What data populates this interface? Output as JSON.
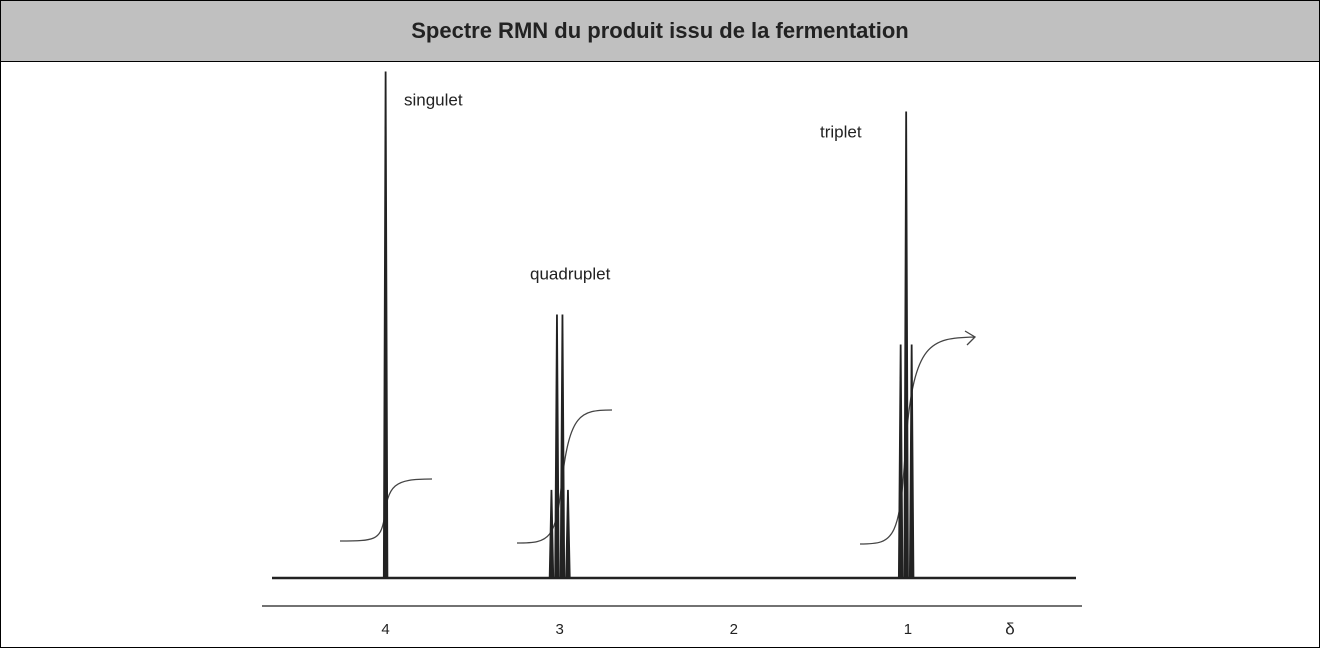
{
  "chart_data": {
    "type": "nmr",
    "title": "Spectre RMN du produit issu de la fermentation",
    "xlabel": "δ",
    "xlim": [
      4.71,
      0
    ],
    "xticks": [
      4,
      3,
      2,
      1
    ],
    "peaks": [
      {
        "label": "singulet",
        "delta": 4.0,
        "lines": 1
      },
      {
        "label": "quadruplet",
        "delta": 3.0,
        "lines": 4
      },
      {
        "label": "triplet",
        "delta": 1.01,
        "lines": 3
      }
    ]
  }
}
